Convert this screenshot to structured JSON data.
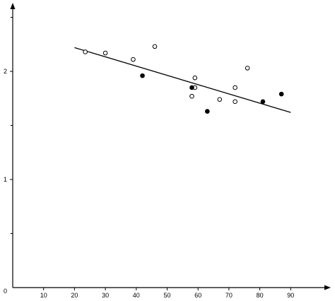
{
  "chart_data": {
    "type": "scatter",
    "title": "",
    "xlabel": "",
    "ylabel": "",
    "xlim": [
      0,
      95
    ],
    "ylim": [
      0,
      2.6
    ],
    "x_ticks": [
      {
        "value": 10,
        "label": "10"
      },
      {
        "value": 20,
        "label": "20"
      },
      {
        "value": 30,
        "label": "30"
      },
      {
        "value": 40,
        "label": "40"
      },
      {
        "value": 50,
        "label": "50"
      },
      {
        "value": 60,
        "label": "60"
      },
      {
        "value": 70,
        "label": "70"
      },
      {
        "value": 80,
        "label": "80"
      },
      {
        "value": 90,
        "label": "90"
      }
    ],
    "y_ticks": [
      {
        "value": 0,
        "label": "0"
      },
      {
        "value": 1,
        "label": "1"
      },
      {
        "value": 2,
        "label": "2"
      }
    ],
    "y_minor_ticks": [
      0.5,
      1.5,
      2.5
    ],
    "grid": false,
    "series": [
      {
        "marker": "open-circle",
        "points": [
          {
            "x": 23.5,
            "y": 2.18
          },
          {
            "x": 30,
            "y": 2.17
          },
          {
            "x": 39,
            "y": 2.11
          },
          {
            "x": 46,
            "y": 2.23
          },
          {
            "x": 58,
            "y": 1.77
          },
          {
            "x": 59,
            "y": 1.94
          },
          {
            "x": 59,
            "y": 1.85
          },
          {
            "x": 67,
            "y": 1.74
          },
          {
            "x": 72,
            "y": 1.85
          },
          {
            "x": 72,
            "y": 1.72
          },
          {
            "x": 76,
            "y": 2.03
          }
        ]
      },
      {
        "marker": "filled-circle",
        "points": [
          {
            "x": 42,
            "y": 1.96
          },
          {
            "x": 58,
            "y": 1.85
          },
          {
            "x": 63,
            "y": 1.63
          },
          {
            "x": 81,
            "y": 1.72
          },
          {
            "x": 87,
            "y": 1.79
          }
        ]
      }
    ],
    "trend_line": {
      "x": [
        20,
        90
      ],
      "y": [
        2.22,
        1.62
      ]
    }
  }
}
